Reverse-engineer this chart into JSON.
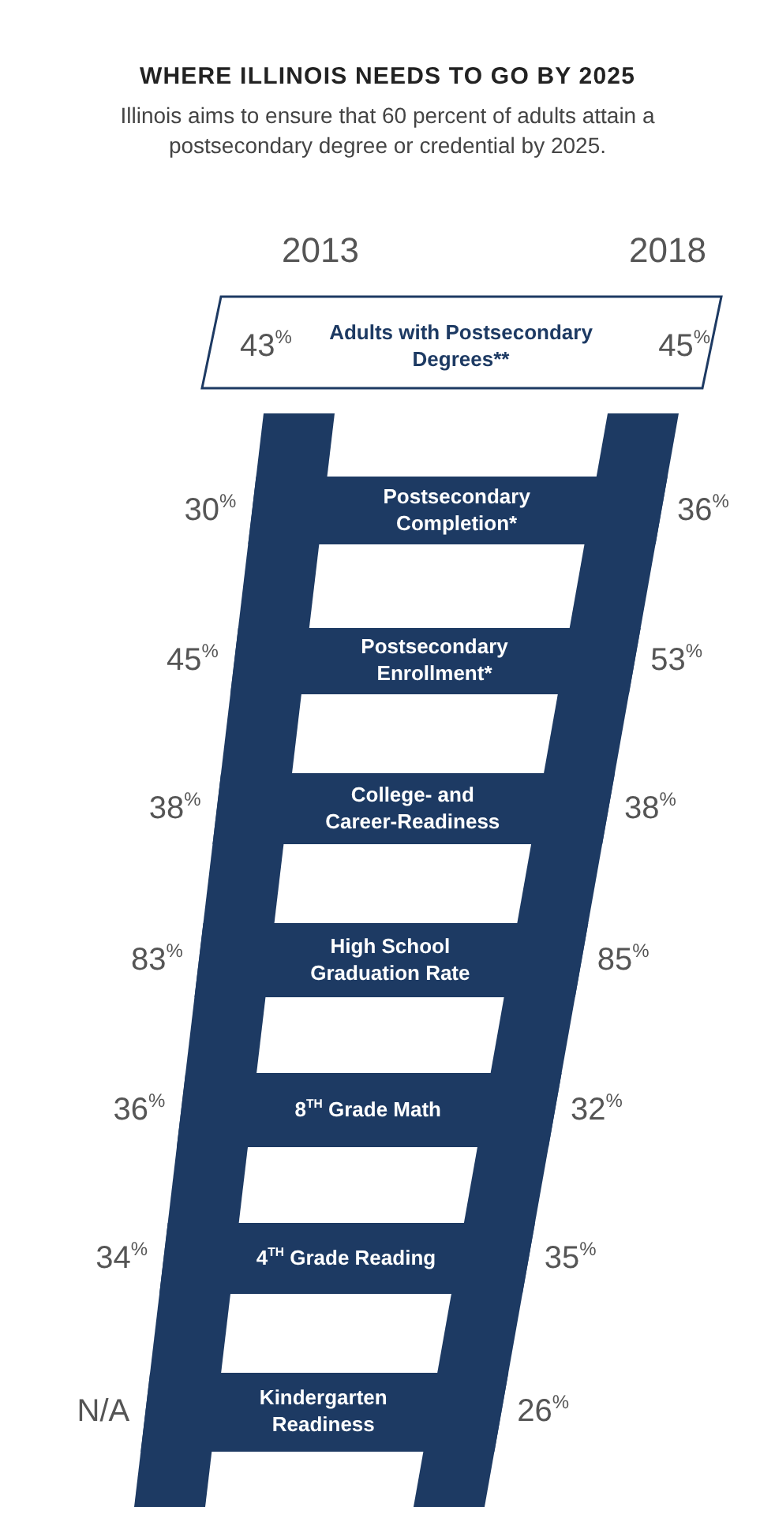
{
  "chart_data": {
    "type": "other",
    "title": "WHERE ILLINOIS NEEDS TO GO BY 2025",
    "subtitle": "Illinois aims to ensure that 60 percent of adults attain a postsecondary degree or credential by 2025.",
    "categories": [
      "Adults with Postsecondary Degrees**",
      "Postsecondary Completion*",
      "Postsecondary Enrollment*",
      "College- and Career-Readiness",
      "High School Graduation Rate",
      "8$^{TH}$ Grade Math",
      "4$^{TH}$ Grade Reading",
      "Kindergarten Readiness"
    ],
    "series": [
      {
        "name": "2013",
        "values": [
          43,
          30,
          45,
          38,
          83,
          36,
          34,
          null
        ],
        "value_labels": [
          "43%",
          "30%",
          "45%",
          "38%",
          "83%",
          "36%",
          "34%",
          "N/A"
        ]
      },
      {
        "name": "2018",
        "values": [
          45,
          36,
          53,
          38,
          85,
          32,
          35,
          26
        ],
        "value_labels": [
          "45%",
          "36%",
          "53%",
          "38%",
          "85%",
          "32%",
          "35%",
          "26%"
        ]
      }
    ],
    "data_labels": true
  }
}
